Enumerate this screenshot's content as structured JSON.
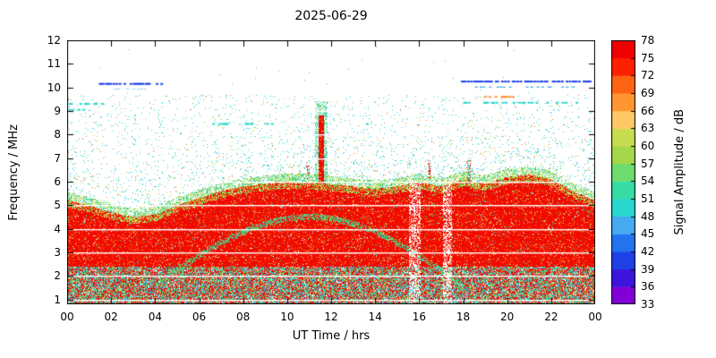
{
  "chart_data": {
    "type": "heatmap",
    "title": "2025-06-29",
    "xlabel": "UT Time / hrs",
    "ylabel": "Frequency / MHz",
    "x_range_hrs": [
      0,
      24
    ],
    "y_range_mhz": [
      0.8,
      12
    ],
    "x_tick_hours": [
      0,
      2,
      4,
      6,
      8,
      10,
      12,
      14,
      16,
      18,
      20,
      22,
      24
    ],
    "x_tick_labels": [
      "00",
      "02",
      "04",
      "06",
      "08",
      "10",
      "12",
      "14",
      "16",
      "18",
      "20",
      "22",
      "00"
    ],
    "y_tick_mhz": [
      1,
      2,
      3,
      4,
      5,
      6,
      7,
      8,
      9,
      10,
      11,
      12
    ],
    "y_tick_labels": [
      "1",
      "2",
      "3",
      "4",
      "5",
      "6",
      "7",
      "8",
      "9",
      "10",
      "11",
      "12"
    ],
    "gridline_mhz": [
      1,
      2,
      3,
      4,
      5,
      6,
      7,
      8,
      9,
      10,
      11
    ],
    "colorbar": {
      "label": "Signal Amplitude / dB",
      "tick_values": [
        33,
        36,
        39,
        42,
        45,
        48,
        51,
        54,
        57,
        60,
        63,
        66,
        69,
        72,
        75,
        78
      ],
      "range_db": [
        33,
        78
      ],
      "segment_colors_bottom_to_top": [
        "#8200d7",
        "#3c14dc",
        "#1e41e6",
        "#2373f0",
        "#46aaf0",
        "#28d7cd",
        "#37dca5",
        "#6edc6e",
        "#a5d74b",
        "#c8dc50",
        "#ffc864",
        "#ff9632",
        "#ff6414",
        "#ff2000",
        "#f00000"
      ]
    },
    "palette": {
      "red": "#f00a00",
      "red2": "#ff3000",
      "orange": "#ff7814",
      "yellow_green": "#c8dc50",
      "green": "#5fd25a",
      "teal": "#28d7c8",
      "cyan_blue": "#41aaf0",
      "blue": "#2246e6",
      "white": "#ffffff"
    },
    "envelope_top_mhz": [
      5.2,
      5.0,
      4.7,
      4.5,
      4.6,
      5.0,
      5.3,
      5.6,
      5.8,
      5.9,
      6.0,
      6.0,
      5.9,
      5.8,
      5.7,
      5.8,
      6.0,
      5.8,
      6.1,
      5.9,
      6.2,
      6.3,
      6.1,
      5.6,
      5.2
    ],
    "bottom_band_top_mhz": 2.4,
    "arc": {
      "t_start": 4,
      "t_end": 18,
      "base_mhz": 1.6,
      "amp_mhz": 2.9,
      "halfwidth_mhz": 0.13
    },
    "plume": {
      "t": 11.55,
      "core_halfwidth_hr": 0.13,
      "core_top_mhz": 8.8,
      "halo_halfwidth_hr": 0.3,
      "halo_top_mhz": 9.4
    },
    "minor_spikes": [
      {
        "t": 10.95,
        "halfwidth_hr": 0.08,
        "top_mhz": 6.7
      },
      {
        "t": 16.45,
        "halfwidth_hr": 0.07,
        "top_mhz": 6.9
      },
      {
        "t": 18.25,
        "halfwidth_hr": 0.09,
        "top_mhz": 7.0
      }
    ],
    "speckle": {
      "base_p": 0.07,
      "decay_mhz": 2.0,
      "uniform_p": 0.018,
      "max_mhz": 9.7,
      "above_factor": 0.12
    },
    "dash_rows": [
      {
        "mhz": 10.15,
        "t_start": 1.3,
        "t_end": 4.3,
        "color": "#2246e6",
        "p": 0.55
      },
      {
        "mhz": 9.95,
        "t_start": 2.0,
        "t_end": 3.6,
        "color": "#41aaf0",
        "p": 0.35
      },
      {
        "mhz": 10.25,
        "t_start": 17.9,
        "t_end": 23.8,
        "color": "#2246e6",
        "p": 0.55
      },
      {
        "mhz": 10.0,
        "t_start": 18.4,
        "t_end": 23.2,
        "color": "#41aaf0",
        "p": 0.3
      },
      {
        "mhz": 9.3,
        "t_start": 0.0,
        "t_end": 1.6,
        "color": "#28d7c8",
        "p": 0.45
      },
      {
        "mhz": 9.05,
        "t_start": 0.0,
        "t_end": 0.9,
        "color": "#28d7c8",
        "p": 0.4
      },
      {
        "mhz": 9.35,
        "t_start": 18.0,
        "t_end": 23.5,
        "color": "#28d7c8",
        "p": 0.3
      },
      {
        "mhz": 9.6,
        "t_start": 18.8,
        "t_end": 20.4,
        "color": "#ff9632",
        "p": 0.55
      },
      {
        "mhz": 8.45,
        "t_start": 6.6,
        "t_end": 9.3,
        "color": "#28d7c8",
        "p": 0.4
      },
      {
        "mhz": 8.45,
        "t_start": 12.6,
        "t_end": 14.0,
        "color": "#28d7c8",
        "p": 0.3
      }
    ],
    "white_streaks": [
      {
        "t": 15.8,
        "halfwidth_hr": 0.25
      },
      {
        "t": 17.3,
        "halfwidth_hr": 0.2
      }
    ],
    "seed": 20250629
  }
}
